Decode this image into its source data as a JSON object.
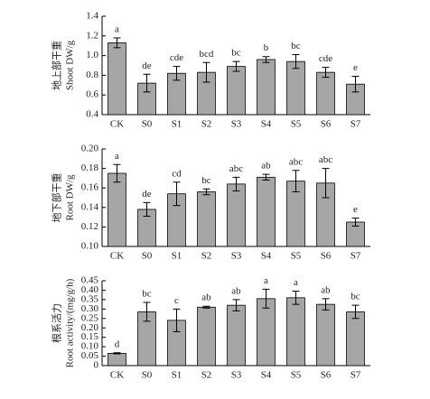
{
  "chart_data": [
    {
      "type": "bar",
      "ylabel": [
        "地上部干重",
        "Shoot DW/g"
      ],
      "color": "#a6a6a6",
      "categories": [
        "CK",
        "S0",
        "S1",
        "S2",
        "S3",
        "S4",
        "S5",
        "S6",
        "S7"
      ],
      "values": [
        1.13,
        0.72,
        0.82,
        0.83,
        0.89,
        0.96,
        0.94,
        0.83,
        0.71
      ],
      "errors": [
        0.05,
        0.09,
        0.07,
        0.1,
        0.05,
        0.03,
        0.07,
        0.05,
        0.08
      ],
      "letters": [
        "a",
        "de",
        "cde",
        "bcd",
        "bc",
        "b",
        "bc",
        "cde",
        "e"
      ],
      "ylim": [
        0.4,
        1.4
      ],
      "yticks": [
        0.4,
        0.6,
        0.8,
        {
          "value": 1,
          "label": "1.0"
        },
        1.2,
        1.4
      ]
    },
    {
      "type": "bar",
      "ylabel": [
        "地下部干重",
        "Root DW/g"
      ],
      "color": "#a6a6a6",
      "categories": [
        "CK",
        "S0",
        "S1",
        "S2",
        "S3",
        "S4",
        "S5",
        "S6",
        "S7"
      ],
      "values": [
        0.175,
        0.138,
        0.154,
        0.156,
        0.164,
        0.171,
        0.167,
        0.165,
        0.125
      ],
      "errors": [
        0.009,
        0.007,
        0.012,
        0.003,
        0.007,
        0.003,
        0.011,
        0.015,
        0.004
      ],
      "letters": [
        "a",
        "de",
        "cd",
        "bc",
        "abc",
        "ab",
        "abc",
        "abc",
        "e"
      ],
      "ylim": [
        0.1,
        0.2
      ],
      "yticks": [
        {
          "value": 0.1,
          "label": "0.10"
        },
        0.12,
        0.14,
        0.16,
        0.18,
        {
          "value": 0.2,
          "label": "0.20"
        }
      ]
    },
    {
      "type": "bar",
      "ylabel": [
        "根系活力",
        "Root activity/(mg/g/h)"
      ],
      "color": "#a6a6a6",
      "categories": [
        "CK",
        "S0",
        "S1",
        "S2",
        "S3",
        "S4",
        "S5",
        "S6",
        "S7"
      ],
      "values": [
        0.065,
        0.285,
        0.24,
        0.31,
        0.32,
        0.355,
        0.36,
        0.325,
        0.285
      ],
      "errors": [
        0.003,
        0.05,
        0.06,
        0.005,
        0.03,
        0.05,
        0.035,
        0.03,
        0.035
      ],
      "letters": [
        "d",
        "bc",
        "c",
        "ab",
        "ab",
        "a",
        "a",
        "ab",
        "bc"
      ],
      "ylim": [
        0,
        0.45
      ],
      "yticks": [
        0,
        0.05,
        {
          "value": 0.1,
          "label": "0.10"
        },
        0.15,
        {
          "value": 0.2,
          "label": "0.20"
        },
        0.25,
        {
          "value": 0.3,
          "label": "0.30"
        },
        0.35,
        {
          "value": 0.4,
          "label": "0.40"
        },
        0.45
      ]
    }
  ]
}
